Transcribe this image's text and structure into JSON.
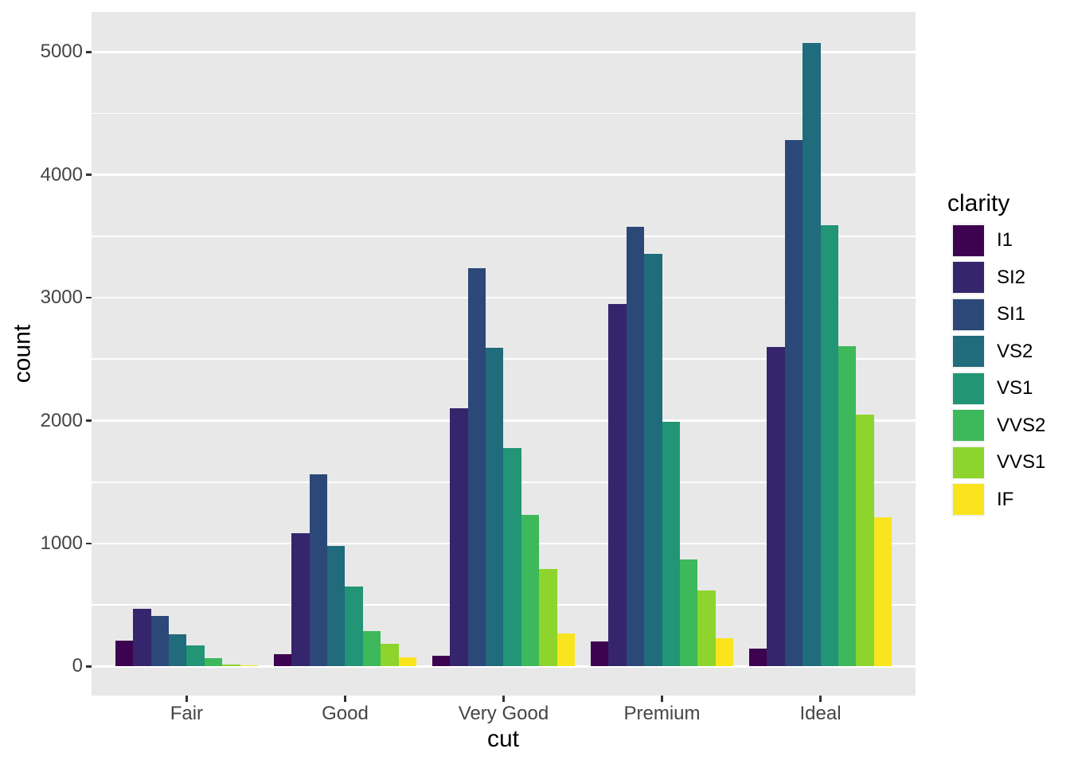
{
  "chart_data": {
    "type": "bar",
    "bar_position": "dodge",
    "title": "",
    "xlabel": "cut",
    "ylabel": "count",
    "legend_title": "clarity",
    "legend_position": "right",
    "grid": true,
    "panel_bg": "#E8E8E8",
    "grid_color": "#FFFFFF",
    "categories": [
      "Fair",
      "Good",
      "Very Good",
      "Premium",
      "Ideal"
    ],
    "series": [
      {
        "name": "I1",
        "color": "#3D0350",
        "values": [
          210,
          96,
          84,
          205,
          146
        ]
      },
      {
        "name": "SI2",
        "color": "#35256D",
        "values": [
          466,
          1081,
          2100,
          2949,
          2598
        ]
      },
      {
        "name": "SI1",
        "color": "#2C4878",
        "values": [
          408,
          1560,
          3240,
          3575,
          4282
        ]
      },
      {
        "name": "VS2",
        "color": "#206B7C",
        "values": [
          261,
          978,
          2591,
          3357,
          5071
        ]
      },
      {
        "name": "VS1",
        "color": "#219576",
        "values": [
          170,
          648,
          1775,
          1989,
          3589
        ]
      },
      {
        "name": "VVS2",
        "color": "#3DB85A",
        "values": [
          69,
          286,
          1235,
          870,
          2606
        ]
      },
      {
        "name": "VVS1",
        "color": "#8DD42D",
        "values": [
          17,
          186,
          789,
          616,
          2047
        ]
      },
      {
        "name": "IF",
        "color": "#FAE41E",
        "values": [
          9,
          71,
          268,
          230,
          1212
        ]
      }
    ],
    "y_ticks": [
      0,
      1000,
      2000,
      3000,
      4000,
      5000
    ],
    "y_minor_ticks": [
      500,
      1500,
      2500,
      3500,
      4500
    ],
    "ylim": [
      -238,
      5326
    ]
  }
}
